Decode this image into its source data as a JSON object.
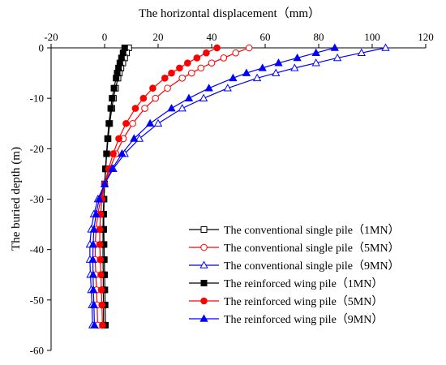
{
  "chart_data": {
    "type": "line",
    "title": "",
    "xlabel": "The horizontal displacement（mm）",
    "ylabel": "The buried depth (m)",
    "xlim": [
      -20,
      120
    ],
    "ylim": [
      -60,
      0
    ],
    "x_axis_position": "top",
    "x_ticks": [
      -20,
      0,
      20,
      40,
      60,
      80,
      100,
      120
    ],
    "y_ticks": [
      0,
      -10,
      -20,
      -30,
      -40,
      -50,
      -60
    ],
    "grid": false,
    "legend_position": "bottom-right",
    "series": [
      {
        "name": "The conventional single pile（1MN）",
        "color": "#000000",
        "marker": "square-open",
        "depth": [
          0,
          -1,
          -2,
          -3,
          -4,
          -5,
          -6,
          -8,
          -10,
          -12,
          -15,
          -18,
          -21,
          -24,
          -27,
          -30,
          -33,
          -36,
          -39,
          -42,
          -45,
          -48,
          -51,
          -55
        ],
        "displacement": [
          9,
          8.2,
          7.5,
          6.8,
          6.1,
          5.5,
          5,
          4.1,
          3.3,
          2.7,
          1.9,
          1.3,
          0.8,
          0.4,
          0,
          -0.3,
          -0.5,
          -0.6,
          -0.6,
          -0.6,
          -0.5,
          -0.5,
          -0.4,
          -0.4
        ]
      },
      {
        "name": "The conventional single pile（5MN）",
        "color": "#ff0000",
        "marker": "circle-open",
        "depth": [
          0,
          -1,
          -2,
          -3,
          -4,
          -5,
          -6,
          -8,
          -10,
          -12,
          -15,
          -18,
          -21,
          -24,
          -27,
          -30,
          -33,
          -36,
          -39,
          -42,
          -45,
          -48,
          -51,
          -55
        ],
        "displacement": [
          54,
          49,
          44.5,
          40,
          36,
          32.5,
          29,
          23.5,
          19,
          15,
          10.5,
          7,
          4.2,
          2,
          0,
          -1.5,
          -2.5,
          -3.2,
          -3.5,
          -3.5,
          -3.3,
          -3,
          -2.8,
          -2.6
        ]
      },
      {
        "name": "The conventional single pile（9MN）",
        "color": "#0000ff",
        "marker": "triangle-open",
        "depth": [
          0,
          -1,
          -2,
          -3,
          -4,
          -5,
          -6,
          -8,
          -10,
          -12,
          -15,
          -18,
          -21,
          -24,
          -27,
          -30,
          -33,
          -36,
          -39,
          -42,
          -45,
          -48,
          -51,
          -55
        ],
        "displacement": [
          105,
          96,
          87,
          79,
          71,
          64,
          57,
          46,
          37,
          29,
          20,
          13,
          7.5,
          3.2,
          0,
          -2.5,
          -4,
          -5,
          -5.5,
          -5.5,
          -5.3,
          -5,
          -4.7,
          -4.5
        ]
      },
      {
        "name": "The reinforced wing pile（1MN）",
        "color": "#000000",
        "marker": "square-filled",
        "depth": [
          0,
          -1,
          -2,
          -3,
          -4,
          -5,
          -6,
          -8,
          -10,
          -12,
          -15,
          -18,
          -21,
          -24,
          -27,
          -30,
          -33,
          -36,
          -39,
          -42,
          -45,
          -48,
          -51,
          -55
        ],
        "displacement": [
          7.5,
          6.9,
          6.3,
          5.7,
          5.2,
          4.7,
          4.3,
          3.5,
          2.8,
          2.3,
          1.6,
          1.1,
          0.7,
          0.3,
          0,
          -0.2,
          -0.3,
          -0.3,
          -0.2,
          -0.1,
          0,
          0.1,
          0.2,
          0.3
        ]
      },
      {
        "name": "The reinforced wing pile（5MN）",
        "color": "#ff0000",
        "marker": "circle-filled",
        "depth": [
          0,
          -1,
          -2,
          -3,
          -4,
          -5,
          -6,
          -8,
          -10,
          -12,
          -15,
          -18,
          -21,
          -24,
          -27,
          -30,
          -33,
          -36,
          -39,
          -42,
          -45,
          -48,
          -51,
          -55
        ],
        "displacement": [
          42,
          38,
          34.5,
          31,
          28,
          25,
          22.5,
          18,
          14.5,
          11.5,
          8,
          5.3,
          3.2,
          1.5,
          0,
          -1,
          -1.5,
          -1.8,
          -1.8,
          -1.6,
          -1.4,
          -1.2,
          -1,
          -0.8
        ]
      },
      {
        "name": "The reinforced wing pile（9MN）",
        "color": "#0000ff",
        "marker": "triangle-filled",
        "depth": [
          0,
          -1,
          -2,
          -3,
          -4,
          -5,
          -6,
          -8,
          -10,
          -12,
          -15,
          -18,
          -21,
          -24,
          -27,
          -30,
          -33,
          -36,
          -39,
          -42,
          -45,
          -48,
          -51,
          -55
        ],
        "displacement": [
          86,
          79,
          72,
          65,
          59,
          53,
          48,
          39,
          31.5,
          25,
          17,
          11,
          6.5,
          2.8,
          0,
          -2,
          -3.2,
          -4,
          -4.3,
          -4.4,
          -4.3,
          -4.2,
          -4,
          -3.8
        ]
      }
    ]
  }
}
